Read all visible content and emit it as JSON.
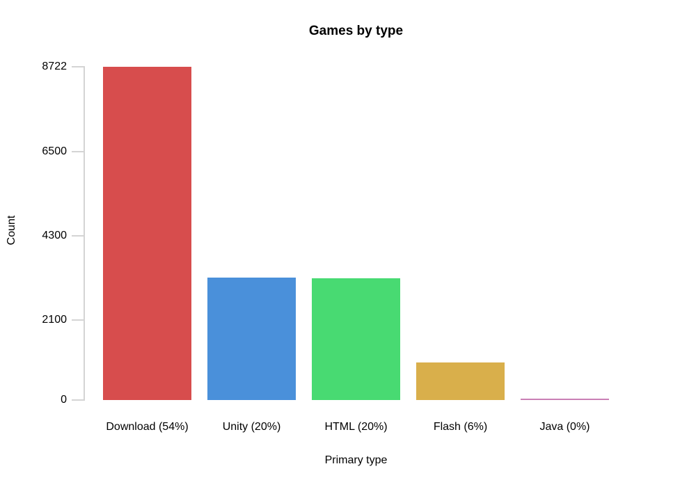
{
  "page": {
    "background": "#ffffff",
    "text_color": "#000000",
    "axis_color": "#d4d4d4"
  },
  "chart_data": {
    "type": "bar",
    "title": "Games by type",
    "xlabel": "Primary type",
    "ylabel": "Count",
    "categories": [
      "Download (54%)",
      "Unity (20%)",
      "HTML (20%)",
      "Flash (6%)",
      "Java (0%)"
    ],
    "values": [
      8722,
      3200,
      3180,
      980,
      25
    ],
    "bar_colors": [
      "#d74d4d",
      "#4a90da",
      "#48da72",
      "#d9af4b",
      "#c97fb5"
    ],
    "yticks": [
      0,
      2100,
      4300,
      6500,
      8722
    ],
    "ylim": [
      0,
      8722
    ],
    "grid": false,
    "legend": null,
    "legend_position": "none",
    "annotations": []
  }
}
